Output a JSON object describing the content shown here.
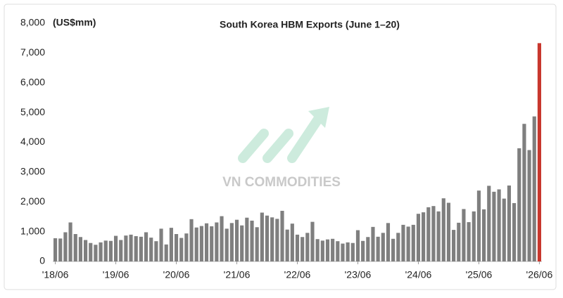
{
  "chart_data": {
    "type": "bar",
    "title": "South Korea HBM Exports (June 1–20)",
    "y_label": "(US$mm)",
    "watermark": "VN COMMODITIES",
    "categories": [
      "'18/06",
      null,
      null,
      null,
      null,
      null,
      null,
      null,
      null,
      null,
      null,
      null,
      "'19/06",
      null,
      null,
      null,
      null,
      null,
      null,
      null,
      null,
      null,
      null,
      null,
      "'20/06",
      null,
      null,
      null,
      null,
      null,
      null,
      null,
      null,
      null,
      null,
      null,
      "'21/06",
      null,
      null,
      null,
      null,
      null,
      null,
      null,
      null,
      null,
      null,
      null,
      "'22/06",
      null,
      null,
      null,
      null,
      null,
      null,
      null,
      null,
      null,
      null,
      null,
      "'23/06",
      null,
      null,
      null,
      null,
      null,
      null,
      null,
      null,
      null,
      null,
      null,
      "'24/06",
      null,
      null,
      null,
      null,
      null,
      null,
      null,
      null,
      null,
      null,
      null,
      "'25/06",
      null,
      null,
      null,
      null,
      null,
      null,
      null,
      null,
      null,
      null,
      null,
      "'26/06"
    ],
    "values": [
      780,
      770,
      980,
      1310,
      920,
      820,
      720,
      620,
      560,
      640,
      700,
      690,
      860,
      720,
      870,
      900,
      850,
      830,
      980,
      800,
      680,
      1100,
      570,
      1130,
      920,
      790,
      940,
      1420,
      1140,
      1190,
      1280,
      1180,
      1310,
      1520,
      1100,
      1290,
      1400,
      1210,
      1470,
      1370,
      1150,
      1640,
      1540,
      1480,
      1430,
      1700,
      1070,
      1270,
      900,
      820,
      960,
      1330,
      750,
      700,
      740,
      760,
      680,
      600,
      640,
      620,
      1050,
      690,
      820,
      1160,
      830,
      960,
      1290,
      760,
      960,
      1230,
      1170,
      1230,
      1600,
      1650,
      1820,
      1860,
      1680,
      2120,
      1970,
      1060,
      1300,
      1760,
      1320,
      1680,
      2380,
      1750,
      2540,
      2340,
      2420,
      2110,
      2550,
      1960,
      3800,
      4620,
      3740,
      4870,
      7330
    ],
    "color": "#7f7f7f",
    "last_color": "#c8372d",
    "ylim": [
      0,
      8000
    ],
    "yticks": [
      0,
      {
        "value": 1000,
        "label": "1,000"
      },
      {
        "value": 2000,
        "label": "2,000"
      },
      {
        "value": 3000,
        "label": "3,000"
      },
      {
        "value": 4000,
        "label": "4,000"
      },
      {
        "value": 5000,
        "label": "5,000"
      },
      {
        "value": 6000,
        "label": "6,000"
      },
      {
        "value": 7000,
        "label": "7,000"
      },
      {
        "value": 8000,
        "label": "8,000"
      }
    ],
    "grid": false
  }
}
